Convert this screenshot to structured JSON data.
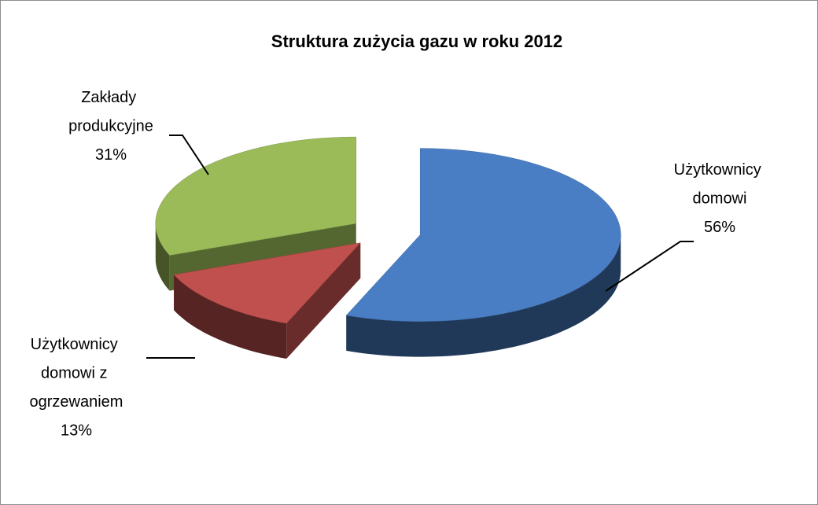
{
  "chart_data": {
    "type": "pie",
    "title": "Struktura zużycia gazu w roku 2012",
    "categories": [
      "Użytkownicy domowi",
      "Użytkownicy domowi z ogrzewaniem",
      "Zakłady produkcyjne"
    ],
    "values": [
      56,
      13,
      31
    ],
    "value_labels": [
      "56%",
      "13%",
      "31%"
    ],
    "colors": [
      "#4a7ec4",
      "#c0504d",
      "#9bbb59"
    ]
  }
}
